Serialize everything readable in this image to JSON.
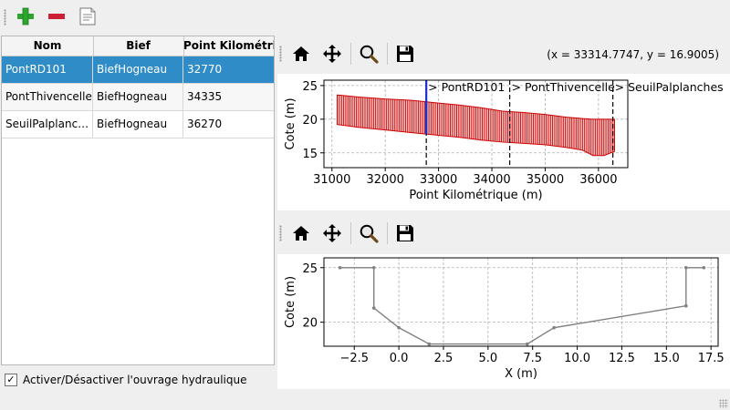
{
  "toolbar": {
    "add_icon": "plus-icon",
    "remove_icon": "minus-icon",
    "edit_icon": "document-icon"
  },
  "table": {
    "headers": [
      "Nom",
      "Bief",
      "Point Kilométrique"
    ],
    "rows": [
      {
        "nom": "PontRD101",
        "bief": "BiefHogneau",
        "pk": "32770"
      },
      {
        "nom": "PontThivencelle",
        "bief": "BiefHogneau",
        "pk": "34335"
      },
      {
        "nom": "SeuilPalplanches",
        "bief": "BiefHogneau",
        "pk": "36270"
      }
    ],
    "selected_row": 0
  },
  "checkbox": {
    "checked": true,
    "label": "Activer/Désactiver l'ouvrage hydraulique"
  },
  "plot1_toolbar": {
    "icons": [
      "home-icon",
      "pan-icon",
      "zoom-icon",
      "save-icon"
    ],
    "coords_text": "(x = 33314.7747,   y = 16.9005)"
  },
  "plot2_toolbar": {
    "icons": [
      "home-icon",
      "pan-icon",
      "zoom-icon",
      "save-icon"
    ]
  },
  "chart_data": [
    {
      "type": "area",
      "xlabel": "Point Kilométrique (m)",
      "ylabel": "Cote (m)",
      "xlim": [
        30850,
        36550
      ],
      "ylim": [
        12.8,
        25.8
      ],
      "xticks": [
        "31000",
        "32000",
        "33000",
        "34000",
        "35000",
        "36000"
      ],
      "xtick_values": [
        31000,
        32000,
        33000,
        34000,
        35000,
        36000
      ],
      "yticks": [
        "15",
        "20",
        "25"
      ],
      "ytick_values": [
        15,
        20,
        25
      ],
      "grid": true,
      "band": {
        "x": [
          31100,
          31500,
          32000,
          32500,
          33000,
          33400,
          33800,
          34200,
          34600,
          35000,
          35400,
          35700,
          35900,
          36100,
          36300
        ],
        "top": [
          23.6,
          23.3,
          23.0,
          22.8,
          22.4,
          22.1,
          21.7,
          21.2,
          21.0,
          20.7,
          20.3,
          20.1,
          20.0,
          20.0,
          20.0
        ],
        "bottom": [
          19.2,
          18.8,
          18.4,
          18.0,
          17.6,
          17.3,
          16.9,
          16.6,
          16.4,
          16.2,
          15.8,
          15.4,
          14.6,
          14.6,
          15.2
        ]
      },
      "color": "#cc0000",
      "markers": [
        {
          "x": 32770,
          "label": "> PontRD101",
          "selected": true
        },
        {
          "x": 34335,
          "label": "> PontThivencelle",
          "selected": false
        },
        {
          "x": 36270,
          "label": "> SeuilPalplanches",
          "selected": false
        }
      ]
    },
    {
      "type": "line",
      "xlabel": "X (m)",
      "ylabel": "Cote (m)",
      "xlim": [
        -4.2,
        17.9
      ],
      "ylim": [
        17.8,
        25.9
      ],
      "xticks": [
        "−2.5",
        "0.0",
        "2.5",
        "5.0",
        "7.5",
        "10.0",
        "12.5",
        "15.0",
        "17.5"
      ],
      "xtick_values": [
        -2.5,
        0,
        2.5,
        5,
        7.5,
        10,
        12.5,
        15,
        17.5
      ],
      "yticks": [
        "20",
        "25"
      ],
      "ytick_values": [
        20,
        25
      ],
      "grid": true,
      "series": [
        {
          "x": [
            -3.3,
            -1.4,
            -1.4,
            0.0,
            1.7,
            7.2,
            8.7,
            16.1,
            16.1,
            17.1
          ],
          "y": [
            25.0,
            25.0,
            21.3,
            19.5,
            18.0,
            18.0,
            19.5,
            21.5,
            25.0,
            25.0
          ],
          "color": "#808080"
        }
      ]
    }
  ]
}
